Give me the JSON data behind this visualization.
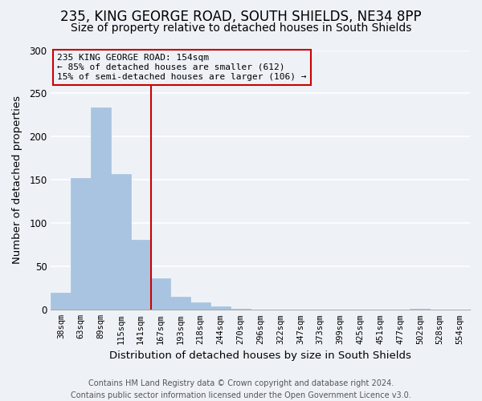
{
  "title": "235, KING GEORGE ROAD, SOUTH SHIELDS, NE34 8PP",
  "subtitle": "Size of property relative to detached houses in South Shields",
  "xlabel": "Distribution of detached houses by size in South Shields",
  "ylabel": "Number of detached properties",
  "bin_labels": [
    "38sqm",
    "63sqm",
    "89sqm",
    "115sqm",
    "141sqm",
    "167sqm",
    "193sqm",
    "218sqm",
    "244sqm",
    "270sqm",
    "296sqm",
    "322sqm",
    "347sqm",
    "373sqm",
    "399sqm",
    "425sqm",
    "451sqm",
    "477sqm",
    "502sqm",
    "528sqm",
    "554sqm"
  ],
  "bar_values": [
    20,
    152,
    234,
    157,
    81,
    36,
    15,
    9,
    4,
    1,
    0,
    0,
    0,
    0,
    0,
    0,
    0,
    0,
    1,
    0,
    0
  ],
  "bar_color": "#a8c4e0",
  "bar_edge_color": "#a8c4e0",
  "ylim": [
    0,
    300
  ],
  "yticks": [
    0,
    50,
    100,
    150,
    200,
    250,
    300
  ],
  "vline_x": 4.5,
  "annotation_title": "235 KING GEORGE ROAD: 154sqm",
  "annotation_line1": "← 85% of detached houses are smaller (612)",
  "annotation_line2": "15% of semi-detached houses are larger (106) →",
  "annotation_box_color": "#cc0000",
  "footer_line1": "Contains HM Land Registry data © Crown copyright and database right 2024.",
  "footer_line2": "Contains public sector information licensed under the Open Government Licence v3.0.",
  "background_color": "#eef2f7",
  "grid_color": "#ffffff",
  "title_fontsize": 12,
  "subtitle_fontsize": 10,
  "axis_label_fontsize": 9.5,
  "tick_fontsize": 7.5,
  "footer_fontsize": 7.0
}
